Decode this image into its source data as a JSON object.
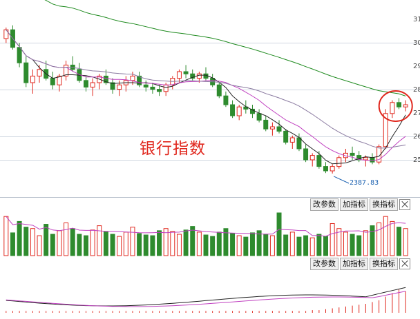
{
  "chart_title": "银行指数",
  "low_label": "2387.83",
  "y_tick_labels": [
    "31",
    "30",
    "29",
    "28",
    "27",
    "26",
    "25"
  ],
  "toolbar_volume": {
    "modify_params": "改参数",
    "add_indicator": "加指标",
    "switch_indicator": "换指标"
  },
  "toolbar_indicator": {
    "modify_params": "改参数",
    "add_indicator": "加指标",
    "switch_indicator": "换指标"
  },
  "colors": {
    "up": "#e0261c",
    "down": "#2e8b2e",
    "ma_long": "#1e8a1e",
    "ma_mid": "#c040c0",
    "ma_short": "#222222",
    "annotation": "#e0261c",
    "low_label": "#1a60b0"
  },
  "chart_data": [
    {
      "type": "candlestick",
      "title": "银行指数",
      "price_range": [
        2300,
        3150
      ],
      "low_point": 2387.83,
      "candles": [
        [
          3000,
          3050,
          2980,
          3040
        ],
        [
          3040,
          3060,
          2950,
          2960
        ],
        [
          2960,
          2980,
          2870,
          2890
        ],
        [
          2890,
          2920,
          2780,
          2800
        ],
        [
          2800,
          2860,
          2750,
          2830
        ],
        [
          2830,
          2880,
          2800,
          2860
        ],
        [
          2860,
          2900,
          2810,
          2820
        ],
        [
          2820,
          2850,
          2770,
          2790
        ],
        [
          2790,
          2840,
          2760,
          2830
        ],
        [
          2830,
          2900,
          2810,
          2880
        ],
        [
          2880,
          2920,
          2850,
          2860
        ],
        [
          2860,
          2890,
          2800,
          2810
        ],
        [
          2810,
          2830,
          2760,
          2780
        ],
        [
          2780,
          2820,
          2740,
          2800
        ],
        [
          2800,
          2840,
          2770,
          2830
        ],
        [
          2830,
          2860,
          2790,
          2800
        ],
        [
          2800,
          2820,
          2750,
          2770
        ],
        [
          2770,
          2810,
          2740,
          2790
        ],
        [
          2790,
          2830,
          2760,
          2810
        ],
        [
          2810,
          2850,
          2790,
          2830
        ],
        [
          2830,
          2850,
          2780,
          2790
        ],
        [
          2790,
          2810,
          2760,
          2780
        ],
        [
          2780,
          2800,
          2750,
          2770
        ],
        [
          2770,
          2790,
          2740,
          2760
        ],
        [
          2760,
          2800,
          2740,
          2790
        ],
        [
          2790,
          2830,
          2770,
          2820
        ],
        [
          2820,
          2860,
          2800,
          2850
        ],
        [
          2850,
          2880,
          2820,
          2840
        ],
        [
          2840,
          2860,
          2810,
          2820
        ],
        [
          2820,
          2850,
          2800,
          2840
        ],
        [
          2840,
          2870,
          2810,
          2820
        ],
        [
          2820,
          2840,
          2780,
          2790
        ],
        [
          2790,
          2800,
          2730,
          2740
        ],
        [
          2740,
          2760,
          2690,
          2700
        ],
        [
          2700,
          2720,
          2640,
          2650
        ],
        [
          2650,
          2700,
          2630,
          2690
        ],
        [
          2690,
          2720,
          2660,
          2680
        ],
        [
          2680,
          2700,
          2640,
          2660
        ],
        [
          2660,
          2680,
          2620,
          2630
        ],
        [
          2630,
          2650,
          2580,
          2590
        ],
        [
          2590,
          2620,
          2560,
          2600
        ],
        [
          2600,
          2630,
          2570,
          2580
        ],
        [
          2580,
          2590,
          2520,
          2530
        ],
        [
          2530,
          2560,
          2500,
          2550
        ],
        [
          2550,
          2570,
          2490,
          2500
        ],
        [
          2500,
          2520,
          2440,
          2450
        ],
        [
          2450,
          2480,
          2420,
          2470
        ],
        [
          2470,
          2490,
          2410,
          2420
        ],
        [
          2420,
          2440,
          2390,
          2400
        ],
        [
          2400,
          2430,
          2388,
          2420
        ],
        [
          2420,
          2470,
          2410,
          2460
        ],
        [
          2460,
          2500,
          2440,
          2480
        ],
        [
          2480,
          2510,
          2450,
          2470
        ],
        [
          2470,
          2490,
          2440,
          2450
        ],
        [
          2450,
          2470,
          2420,
          2460
        ],
        [
          2460,
          2480,
          2430,
          2440
        ],
        [
          2440,
          2520,
          2430,
          2510
        ],
        [
          2510,
          2680,
          2500,
          2660
        ],
        [
          2660,
          2720,
          2640,
          2710
        ],
        [
          2710,
          2730,
          2680,
          2690
        ],
        [
          2690,
          2720,
          2670,
          2700
        ]
      ],
      "volume": [
        55,
        32,
        48,
        40,
        38,
        28,
        44,
        30,
        35,
        46,
        38,
        30,
        28,
        36,
        42,
        34,
        30,
        27,
        33,
        40,
        31,
        29,
        28,
        35,
        38,
        34,
        30,
        36,
        41,
        33,
        29,
        27,
        33,
        38,
        31,
        28,
        26,
        32,
        35,
        30,
        28,
        60,
        29,
        33,
        26,
        28,
        25,
        30,
        27,
        45,
        38,
        33,
        30,
        28,
        35,
        42,
        46,
        55,
        48,
        40,
        38
      ],
      "macd_hist": [
        2,
        2,
        2,
        2,
        2,
        2,
        2,
        2,
        2,
        2,
        2,
        2,
        2,
        2,
        2,
        2,
        2,
        2,
        2,
        2,
        2,
        2,
        2,
        2,
        2,
        2,
        2,
        2,
        2,
        2,
        2,
        2,
        2,
        2,
        2,
        2,
        2,
        2,
        2,
        2,
        2,
        2,
        2,
        2,
        2,
        2,
        3,
        3,
        4,
        5,
        6,
        7,
        8,
        9,
        10,
        12,
        14,
        18,
        22,
        26,
        24
      ]
    }
  ]
}
